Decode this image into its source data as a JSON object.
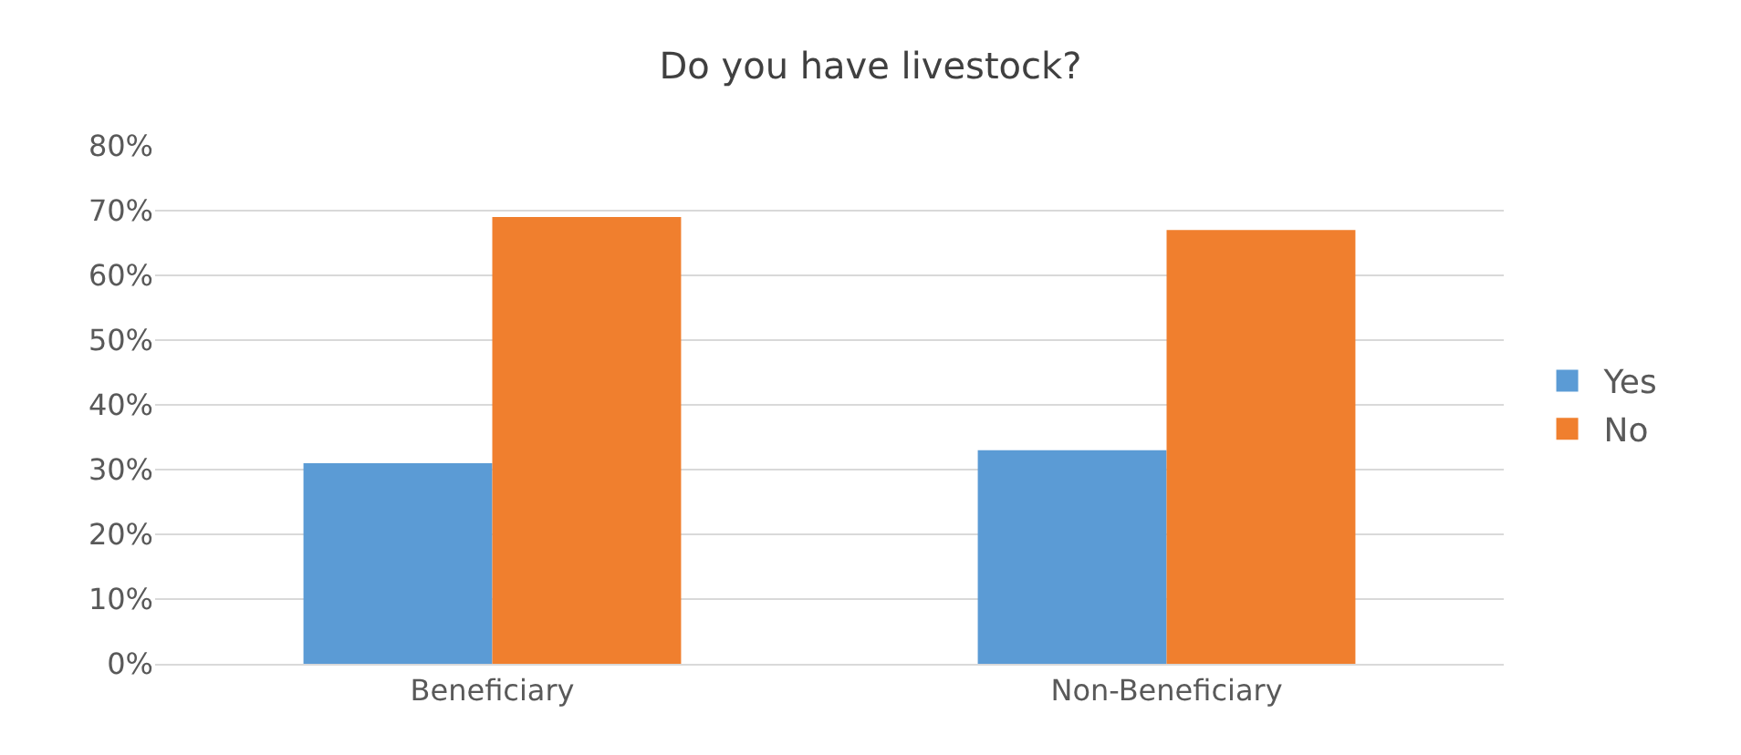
{
  "chart_data": {
    "type": "bar",
    "title": "Do you have livestock?",
    "categories": [
      "Beneficiary",
      "Non-Beneficiary"
    ],
    "series": [
      {
        "name": "Yes",
        "color": "#5b9bd5",
        "values": [
          31,
          33
        ]
      },
      {
        "name": "No",
        "color": "#f07f2e",
        "values": [
          69,
          67
        ]
      }
    ],
    "ylim": [
      0,
      80
    ],
    "yticks": [
      {
        "value": 0,
        "label": "0%"
      },
      {
        "value": 10,
        "label": "10%"
      },
      {
        "value": 20,
        "label": "20%"
      },
      {
        "value": 30,
        "label": "30%"
      },
      {
        "value": 40,
        "label": "40%"
      },
      {
        "value": 50,
        "label": "50%"
      },
      {
        "value": 60,
        "label": "60%"
      },
      {
        "value": 70,
        "label": "70%"
      },
      {
        "value": 80,
        "label": "80%"
      }
    ],
    "grid": "y",
    "legend": "right"
  }
}
